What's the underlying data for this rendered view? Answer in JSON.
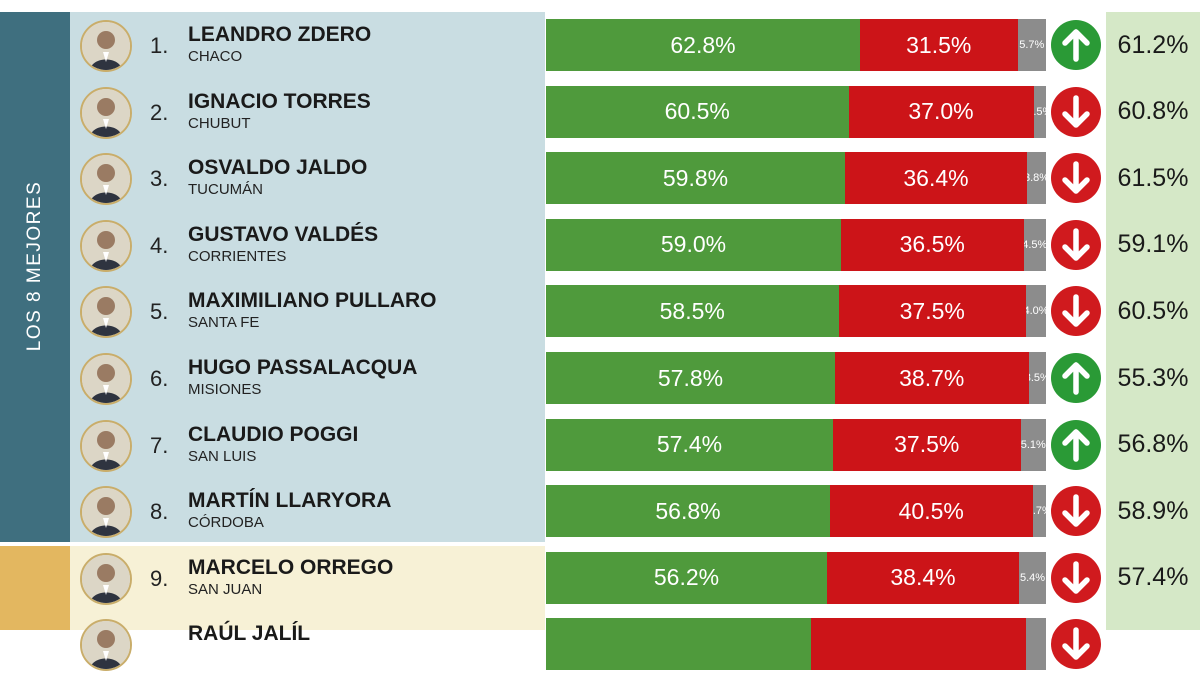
{
  "side_label": "LOS 8 MEJORES",
  "colors": {
    "approve": "#4f9a3c",
    "disapprove": "#cc1418",
    "undecided": "#8c8c8c",
    "up": "#2a9a36",
    "down": "#d01a1e"
  },
  "chart_data": {
    "type": "bar",
    "orientation": "horizontal-stacked",
    "title": "",
    "series_names": [
      "approve",
      "disapprove",
      "ns/nc"
    ],
    "rows": [
      {
        "rank": "1.",
        "name": "LEANDRO ZDERO",
        "province": "CHACO",
        "approve": 62.8,
        "approve_label": "62.8%",
        "disapprove": 31.5,
        "disapprove_label": "31.5%",
        "other": 5.7,
        "other_label": "5.7%",
        "trend": "up",
        "previous": "61.2%"
      },
      {
        "rank": "2.",
        "name": "IGNACIO TORRES",
        "province": "CHUBUT",
        "approve": 60.5,
        "approve_label": "60.5%",
        "disapprove": 37.0,
        "disapprove_label": "37.0%",
        "other": 2.5,
        "other_label": "2.5%",
        "trend": "down",
        "previous": "60.8%"
      },
      {
        "rank": "3.",
        "name": "OSVALDO JALDO",
        "province": "TUCUMÁN",
        "approve": 59.8,
        "approve_label": "59.8%",
        "disapprove": 36.4,
        "disapprove_label": "36.4%",
        "other": 3.8,
        "other_label": "3.8%",
        "trend": "down",
        "previous": "61.5%"
      },
      {
        "rank": "4.",
        "name": "GUSTAVO VALDÉS",
        "province": "CORRIENTES",
        "approve": 59.0,
        "approve_label": "59.0%",
        "disapprove": 36.5,
        "disapprove_label": "36.5%",
        "other": 4.5,
        "other_label": "4.5%",
        "trend": "down",
        "previous": "59.1%"
      },
      {
        "rank": "5.",
        "name": "MAXIMILIANO PULLARO",
        "province": "SANTA FE",
        "approve": 58.5,
        "approve_label": "58.5%",
        "disapprove": 37.5,
        "disapprove_label": "37.5%",
        "other": 4.0,
        "other_label": "4.0%",
        "trend": "down",
        "previous": "60.5%"
      },
      {
        "rank": "6.",
        "name": "HUGO PASSALACQUA",
        "province": "MISIONES",
        "approve": 57.8,
        "approve_label": "57.8%",
        "disapprove": 38.7,
        "disapprove_label": "38.7%",
        "other": 3.5,
        "other_label": "3.5%",
        "trend": "up",
        "previous": "55.3%"
      },
      {
        "rank": "7.",
        "name": "CLAUDIO POGGI",
        "province": "SAN LUIS",
        "approve": 57.4,
        "approve_label": "57.4%",
        "disapprove": 37.5,
        "disapprove_label": "37.5%",
        "other": 5.1,
        "other_label": "5.1%",
        "trend": "up",
        "previous": "56.8%"
      },
      {
        "rank": "8.",
        "name": "MARTÍN LLARYORA",
        "province": "CÓRDOBA",
        "approve": 56.8,
        "approve_label": "56.8%",
        "disapprove": 40.5,
        "disapprove_label": "40.5%",
        "other": 2.7,
        "other_label": "2.7%",
        "trend": "down",
        "previous": "58.9%"
      },
      {
        "rank": "9.",
        "name": "MARCELO ORREGO",
        "province": "SAN JUAN",
        "approve": 56.2,
        "approve_label": "56.2%",
        "disapprove": 38.4,
        "disapprove_label": "38.4%",
        "other": 5.4,
        "other_label": "5.4%",
        "trend": "down",
        "previous": "57.4%"
      },
      {
        "rank": "",
        "name": "RAÚL JALÍL",
        "province": "",
        "approve": 52.9,
        "approve_label": "",
        "disapprove": 43.1,
        "disapprove_label": "",
        "other": 4.0,
        "other_label": "",
        "trend": "down",
        "previous": ""
      }
    ]
  }
}
